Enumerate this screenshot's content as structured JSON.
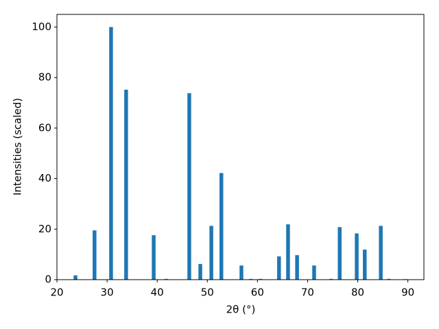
{
  "chart_data": {
    "type": "bar",
    "x_label": "2θ (°)",
    "y_label": "Intensities (scaled)",
    "x": [
      23.7,
      27.5,
      30.8,
      33.8,
      39.3,
      41.8,
      46.4,
      48.6,
      50.8,
      52.8,
      56.8,
      58.7,
      60.6,
      64.3,
      66.1,
      67.9,
      71.3,
      74.7,
      76.4,
      79.8,
      81.4,
      84.6,
      86.2,
      89.5
    ],
    "values": [
      1.7,
      19.5,
      100,
      75.2,
      17.6,
      0.3,
      73.8,
      6.2,
      21.3,
      42.2,
      5.6,
      0.3,
      0.3,
      9.2,
      21.9,
      9.7,
      5.6,
      0.3,
      20.8,
      18.3,
      11.9,
      21.3,
      0.3,
      0.2
    ],
    "color": "#1f77b4",
    "xlim": [
      20,
      93.2
    ],
    "xticks": [
      20,
      30,
      40,
      50,
      60,
      70,
      80,
      90
    ],
    "ylim": [
      0,
      105
    ],
    "yticks": [
      0,
      20,
      40,
      60,
      80,
      100
    ],
    "grid": false
  }
}
